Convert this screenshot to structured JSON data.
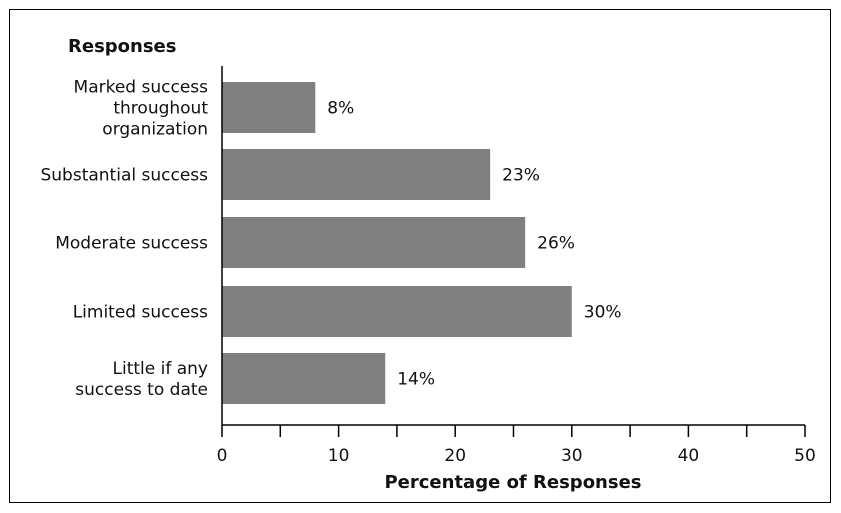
{
  "chart_data": {
    "type": "bar",
    "orientation": "horizontal",
    "title": "",
    "ylabel": "Responses",
    "xlabel": "Percentage of Responses",
    "categories": [
      [
        "Marked success",
        "throughout",
        "organization"
      ],
      [
        "Substantial success"
      ],
      [
        "Moderate success"
      ],
      [
        "Limited success"
      ],
      [
        "Little if any",
        "success to date"
      ]
    ],
    "values": [
      8,
      23,
      26,
      30,
      14
    ],
    "value_labels": [
      "8%",
      "23%",
      "26%",
      "30%",
      "14%"
    ],
    "xlim": [
      0,
      50
    ],
    "xticks": [
      0,
      10,
      20,
      30,
      40,
      50
    ],
    "grid": false,
    "colors": {
      "bar": "#808080",
      "axis": "#000000",
      "text": "#111111"
    }
  }
}
